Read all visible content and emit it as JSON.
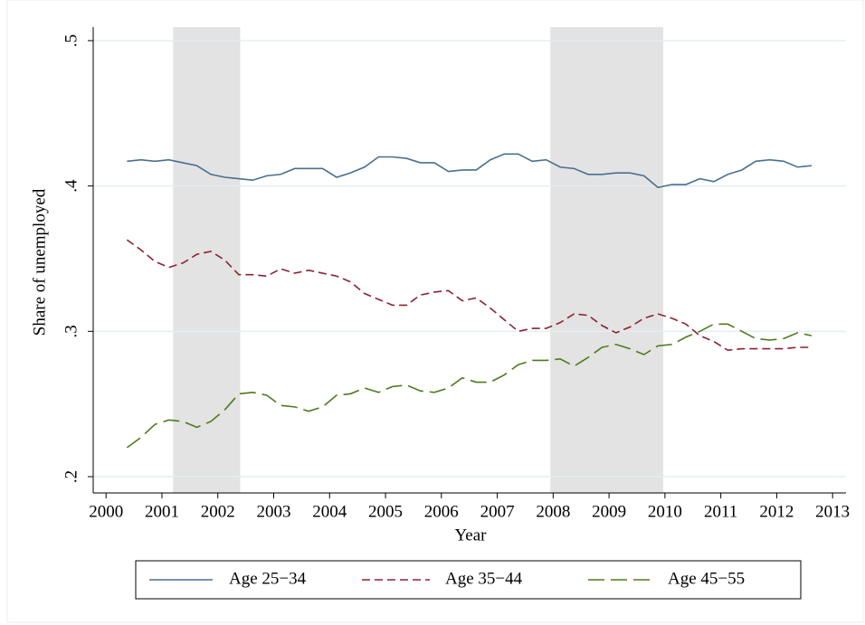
{
  "chart_data": {
    "type": "line",
    "y_label": "Share of unemployed",
    "x_label": "Year",
    "x": [
      2000.375,
      2000.625,
      2000.875,
      2001.125,
      2001.375,
      2001.625,
      2001.875,
      2002.125,
      2002.375,
      2002.625,
      2002.875,
      2003.125,
      2003.375,
      2003.625,
      2003.875,
      2004.125,
      2004.375,
      2004.625,
      2004.875,
      2005.125,
      2005.375,
      2005.625,
      2005.875,
      2006.125,
      2006.375,
      2006.625,
      2006.875,
      2007.125,
      2007.375,
      2007.625,
      2007.875,
      2008.125,
      2008.375,
      2008.625,
      2008.875,
      2009.125,
      2009.375,
      2009.625,
      2009.875,
      2010.125,
      2010.375,
      2010.625,
      2010.875,
      2011.125,
      2011.375,
      2011.625,
      2011.875,
      2012.125,
      2012.375,
      2012.625
    ],
    "series": [
      {
        "name": "Age 25−34",
        "color": "#4a6f8f",
        "line_style": "solid",
        "values": [
          0.417,
          0.418,
          0.417,
          0.418,
          0.416,
          0.414,
          0.408,
          0.406,
          0.405,
          0.404,
          0.407,
          0.408,
          0.412,
          0.412,
          0.412,
          0.406,
          0.409,
          0.413,
          0.42,
          0.42,
          0.419,
          0.416,
          0.416,
          0.41,
          0.411,
          0.411,
          0.418,
          0.422,
          0.422,
          0.417,
          0.418,
          0.413,
          0.412,
          0.408,
          0.408,
          0.409,
          0.409,
          0.407,
          0.399,
          0.401,
          0.401,
          0.405,
          0.403,
          0.408,
          0.411,
          0.417,
          0.418,
          0.417,
          0.413,
          0.414
        ]
      },
      {
        "name": "Age 35−44",
        "color": "#8b2332",
        "line_style": "dash",
        "values": [
          0.363,
          0.356,
          0.348,
          0.344,
          0.347,
          0.353,
          0.355,
          0.349,
          0.339,
          0.339,
          0.338,
          0.343,
          0.34,
          0.342,
          0.34,
          0.338,
          0.334,
          0.326,
          0.322,
          0.318,
          0.318,
          0.325,
          0.327,
          0.328,
          0.321,
          0.323,
          0.316,
          0.308,
          0.3,
          0.302,
          0.302,
          0.306,
          0.312,
          0.311,
          0.304,
          0.299,
          0.303,
          0.309,
          0.312,
          0.309,
          0.305,
          0.297,
          0.293,
          0.287,
          0.288,
          0.288,
          0.288,
          0.288,
          0.289,
          0.289
        ]
      },
      {
        "name": "Age 45−55",
        "color": "#4e7a1e",
        "line_style": "longdash",
        "values": [
          0.22,
          0.227,
          0.236,
          0.239,
          0.238,
          0.234,
          0.238,
          0.246,
          0.257,
          0.258,
          0.256,
          0.249,
          0.248,
          0.245,
          0.248,
          0.256,
          0.257,
          0.261,
          0.258,
          0.262,
          0.263,
          0.259,
          0.258,
          0.261,
          0.268,
          0.265,
          0.265,
          0.27,
          0.277,
          0.28,
          0.28,
          0.281,
          0.276,
          0.282,
          0.289,
          0.291,
          0.288,
          0.284,
          0.29,
          0.291,
          0.296,
          0.3,
          0.305,
          0.305,
          0.3,
          0.295,
          0.294,
          0.295,
          0.299,
          0.297
        ]
      }
    ],
    "shaded_periods": [
      [
        2001.2,
        2002.4
      ],
      [
        2007.95,
        2009.97
      ]
    ],
    "shade_color": "#e3e3e3",
    "xlim": [
      1999.77,
      2013.24
    ],
    "xticks": [
      2000,
      2001,
      2002,
      2003,
      2004,
      2005,
      2006,
      2007,
      2008,
      2009,
      2010,
      2011,
      2012,
      2013
    ],
    "ylim": [
      0.1888,
      0.5093
    ],
    "yticks": [
      {
        "value": 0.2,
        "label": ".2"
      },
      {
        "value": 0.3,
        "label": ".3"
      },
      {
        "value": 0.4,
        "label": ".4"
      },
      {
        "value": 0.5,
        "label": ".5"
      }
    ],
    "grid": true,
    "legend": "bottom"
  }
}
